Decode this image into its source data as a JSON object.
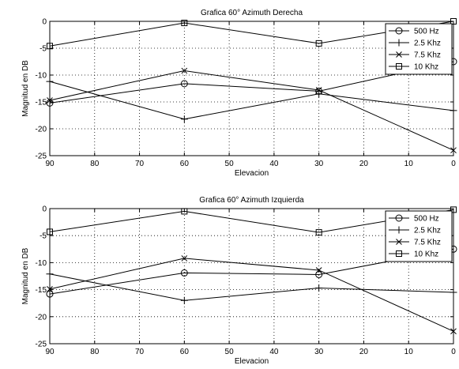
{
  "chart_data": [
    {
      "type": "line",
      "title": "Grafica 60° Azimuth Derecha",
      "xlabel": "Elevacion",
      "ylabel": "Magnitud en DB",
      "xlim": [
        90,
        0
      ],
      "ylim": [
        -25,
        0
      ],
      "xticks": [
        90,
        80,
        70,
        60,
        50,
        40,
        30,
        20,
        10,
        0
      ],
      "yticks": [
        0,
        -5,
        -10,
        -15,
        -20,
        -25
      ],
      "grid": true,
      "legend_position": "top-right",
      "x": [
        90,
        60,
        30,
        0
      ],
      "series": [
        {
          "name": "500 Hz",
          "marker": "circle",
          "values": [
            -15.2,
            -11.6,
            -13.0,
            -7.5
          ]
        },
        {
          "name": "2.5 Khz",
          "marker": "plus",
          "values": [
            -11.2,
            -18.2,
            -13.5,
            -16.6
          ]
        },
        {
          "name": "7.5 Khz",
          "marker": "x",
          "values": [
            -14.7,
            -9.2,
            -12.8,
            -24.0
          ]
        },
        {
          "name": "10 Khz",
          "marker": "square",
          "values": [
            -4.6,
            -0.3,
            -4.1,
            0.0
          ]
        }
      ]
    },
    {
      "type": "line",
      "title": "Grafica 60° Azimuth Izquierda",
      "xlabel": "Elevacion",
      "ylabel": "Magnitud en DB",
      "xlim": [
        90,
        0
      ],
      "ylim": [
        -25,
        0
      ],
      "xticks": [
        90,
        80,
        70,
        60,
        50,
        40,
        30,
        20,
        10,
        0
      ],
      "yticks": [
        0,
        -5,
        -10,
        -15,
        -20,
        -25
      ],
      "grid": true,
      "legend_position": "top-right",
      "x": [
        90,
        60,
        30,
        0
      ],
      "series": [
        {
          "name": "500 Hz",
          "marker": "circle",
          "values": [
            -15.8,
            -11.9,
            -12.2,
            -7.5
          ]
        },
        {
          "name": "2.5 Khz",
          "marker": "plus",
          "values": [
            -12.1,
            -17.0,
            -14.7,
            -15.5
          ]
        },
        {
          "name": "7.5 Khz",
          "marker": "x",
          "values": [
            -14.9,
            -9.2,
            -11.4,
            -22.7
          ]
        },
        {
          "name": "10 Khz",
          "marker": "square",
          "values": [
            -4.3,
            -0.5,
            -4.4,
            -0.2
          ]
        }
      ]
    }
  ]
}
